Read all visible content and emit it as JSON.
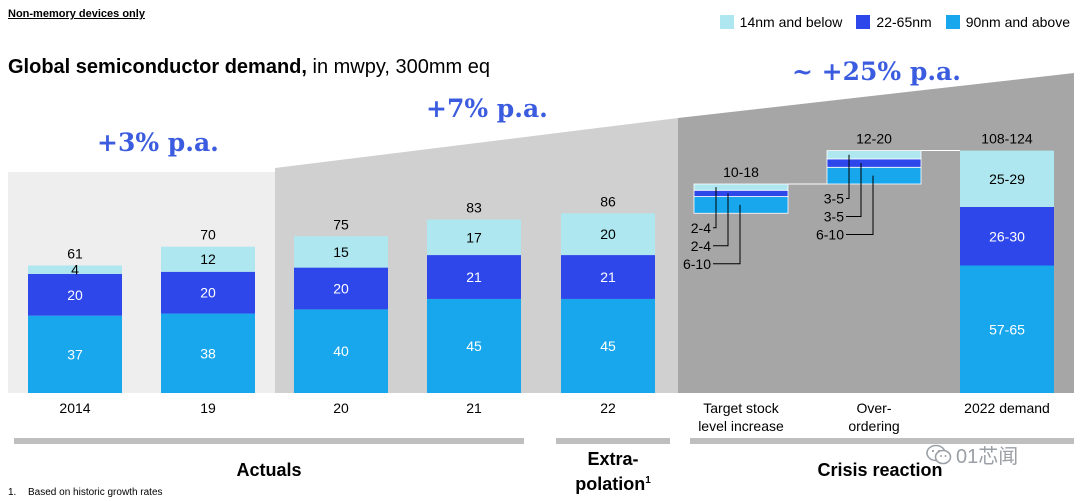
{
  "tag": "Non-memory devices only",
  "title": {
    "bold": "Global semiconductor demand,",
    "rest": " in mwpy, 300mm eq"
  },
  "legend": [
    {
      "label": "14nm and below",
      "color": "#aee7ef"
    },
    {
      "label": "22-65nm",
      "color": "#2e47ea"
    },
    {
      "label": "90nm and above",
      "color": "#18a7ec"
    }
  ],
  "growth": {
    "actuals": "+3% p.a.",
    "extrapolation": "+7% p.a.",
    "crisis": "~ +25% p.a."
  },
  "sections": {
    "actuals": "Actuals",
    "extra_line1": "Extra-",
    "extra_line2": "polation",
    "extra_sup": "1",
    "crisis": "Crisis reaction"
  },
  "footnote": {
    "num": "1.",
    "text": "Based on historic growth rates"
  },
  "watermark": "01芯闻",
  "chart_data": {
    "type": "bar",
    "stacked": true,
    "categories": [
      "2014",
      "19",
      "20",
      "21",
      "22",
      "Target stock level increase",
      "Over-ordering",
      "2022 demand"
    ],
    "series": [
      {
        "name": "90nm and above",
        "values": [
          37,
          38,
          40,
          45,
          45,
          8,
          8,
          61
        ]
      },
      {
        "name": "22-65nm",
        "values": [
          20,
          20,
          20,
          21,
          21,
          3,
          4,
          28
        ]
      },
      {
        "name": "14nm and below",
        "values": [
          4,
          12,
          15,
          17,
          20,
          3,
          4,
          27
        ]
      }
    ],
    "totals": [
      61,
      70,
      75,
      83,
      86,
      14,
      16,
      116
    ],
    "data_labels": {
      "90nm and above": [
        "37",
        "38",
        "40",
        "45",
        "45",
        "6-10",
        "6-10",
        "57-65"
      ],
      "22-65nm": [
        "20",
        "20",
        "20",
        "21",
        "21",
        "2-4",
        "3-5",
        "26-30"
      ],
      "14nm and below": [
        "4",
        "12",
        "15",
        "17",
        "20",
        "2-4",
        "3-5",
        "25-29"
      ]
    },
    "total_labels": [
      "61",
      "70",
      "75",
      "83",
      "86",
      "10-18",
      "12-20",
      "108-124"
    ],
    "waterfall_base": [
      0,
      0,
      0,
      0,
      0,
      86,
      100,
      0
    ]
  }
}
